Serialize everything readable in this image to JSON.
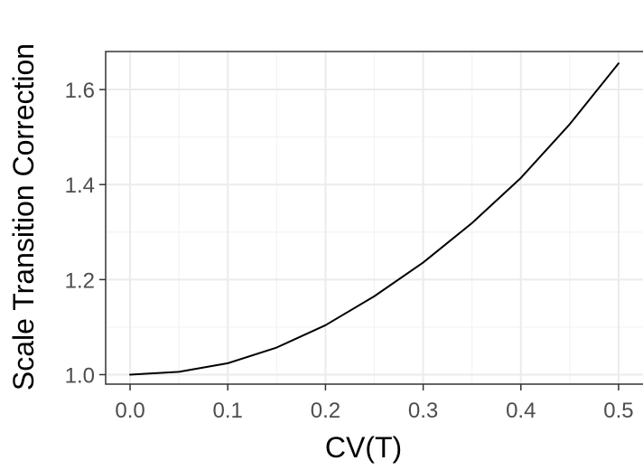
{
  "chart_data": {
    "type": "line",
    "title": "",
    "xlabel": "CV(T)",
    "ylabel": "Scale Transition Correction",
    "xlim": [
      -0.025,
      0.525
    ],
    "ylim": [
      0.98,
      1.68
    ],
    "x_ticks": [
      0.0,
      0.1,
      0.2,
      0.3,
      0.4,
      0.5
    ],
    "x_tick_labels": [
      "0.0",
      "0.1",
      "0.2",
      "0.3",
      "0.4",
      "0.5"
    ],
    "y_ticks": [
      1.0,
      1.2,
      1.4,
      1.6
    ],
    "y_tick_labels": [
      "1.0",
      "1.2",
      "1.4",
      "1.6"
    ],
    "grid": true,
    "theme": "bw",
    "series": [
      {
        "color": "#000000",
        "x": [
          0.0,
          0.05,
          0.1,
          0.15,
          0.2,
          0.25,
          0.3,
          0.35,
          0.4,
          0.45,
          0.5
        ],
        "y": [
          1.0,
          1.006,
          1.024,
          1.057,
          1.104,
          1.165,
          1.236,
          1.319,
          1.414,
          1.527,
          1.655
        ]
      }
    ]
  },
  "colors": {
    "background": "#ffffff",
    "panel_border": "#333333",
    "grid_major": "#ebebeb",
    "grid_minor": "#f3f3f3",
    "line": "#000000",
    "tick_text": "#4d4d4d",
    "axis_title": "#000000"
  }
}
